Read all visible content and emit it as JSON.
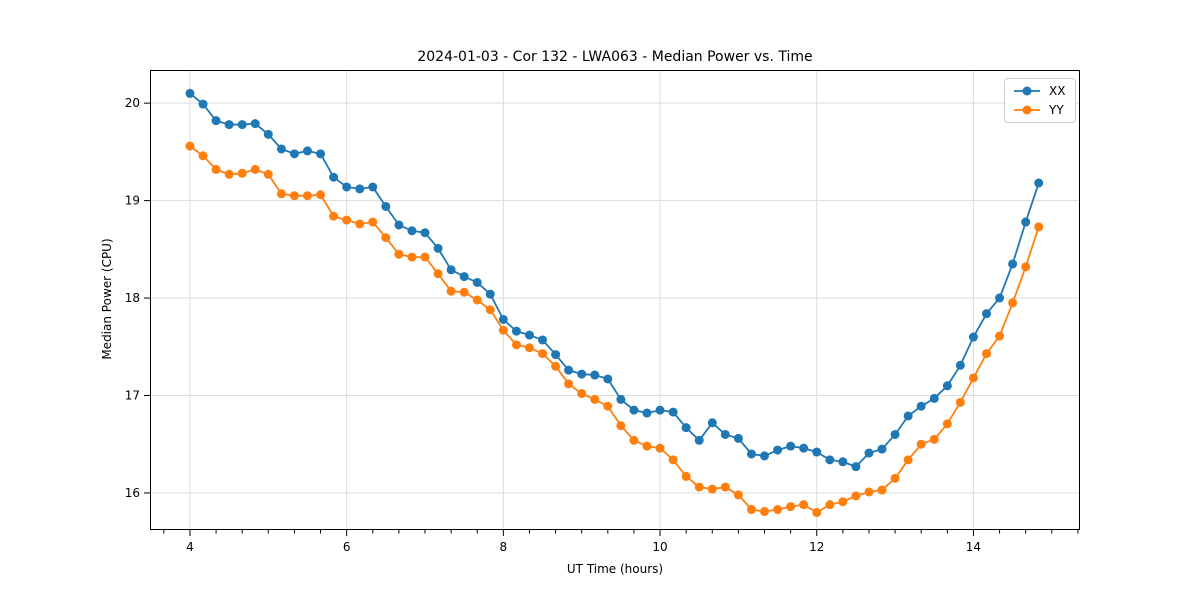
{
  "figure": {
    "title": "2024-01-03 - Cor 132 - LWA063 - Median Power vs. Time",
    "xlabel": "UT Time (hours)",
    "ylabel": "Median Power (CPU)"
  },
  "chart_data": {
    "type": "line",
    "title": "2024-01-03 - Cor 132 - LWA063 - Median Power vs. Time",
    "xlabel": "UT Time (hours)",
    "ylabel": "Median Power (CPU)",
    "xlim": [
      3.49,
      15.36
    ],
    "ylim": [
      15.62,
      20.34
    ],
    "x_ticks": [
      4,
      6,
      8,
      10,
      12,
      14
    ],
    "y_ticks": [
      16,
      17,
      18,
      19,
      20
    ],
    "x_minor_step": 0.33333,
    "grid": true,
    "grid_color": "#dcdcdc",
    "legend_position": "upper right",
    "marker": "circle",
    "x": [
      4.0,
      4.167,
      4.333,
      4.5,
      4.667,
      4.833,
      5.0,
      5.167,
      5.333,
      5.5,
      5.667,
      5.833,
      6.0,
      6.167,
      6.333,
      6.5,
      6.667,
      6.833,
      7.0,
      7.167,
      7.333,
      7.5,
      7.667,
      7.833,
      8.0,
      8.167,
      8.333,
      8.5,
      8.667,
      8.833,
      9.0,
      9.167,
      9.333,
      9.5,
      9.667,
      9.833,
      10.0,
      10.167,
      10.333,
      10.5,
      10.667,
      10.833,
      11.0,
      11.167,
      11.333,
      11.5,
      11.667,
      11.833,
      12.0,
      12.167,
      12.333,
      12.5,
      12.667,
      12.833,
      13.0,
      13.167,
      13.333,
      13.5,
      13.667,
      13.833,
      14.0,
      14.167,
      14.333,
      14.5,
      14.667,
      14.833
    ],
    "series": [
      {
        "name": "XX",
        "color": "#1f77b4",
        "values": [
          20.1,
          19.99,
          19.82,
          19.78,
          19.78,
          19.79,
          19.68,
          19.53,
          19.48,
          19.51,
          19.48,
          19.24,
          19.14,
          19.12,
          19.14,
          18.94,
          18.75,
          18.69,
          18.67,
          18.51,
          18.29,
          18.22,
          18.16,
          18.04,
          17.78,
          17.66,
          17.62,
          17.57,
          17.42,
          17.26,
          17.22,
          17.21,
          17.17,
          16.96,
          16.85,
          16.82,
          16.85,
          16.83,
          16.67,
          16.54,
          16.72,
          16.6,
          16.56,
          16.4,
          16.38,
          16.44,
          16.48,
          16.46,
          16.42,
          16.34,
          16.32,
          16.27,
          16.41,
          16.45,
          16.6,
          16.79,
          16.89,
          16.97,
          17.1,
          17.31,
          17.6,
          17.84,
          18.0,
          18.35,
          18.78,
          19.18
        ]
      },
      {
        "name": "YY",
        "color": "#ff7f0e",
        "values": [
          19.56,
          19.46,
          19.32,
          19.27,
          19.28,
          19.32,
          19.27,
          19.07,
          19.05,
          19.05,
          19.06,
          18.84,
          18.8,
          18.76,
          18.78,
          18.62,
          18.45,
          18.42,
          18.42,
          18.25,
          18.07,
          18.06,
          17.98,
          17.88,
          17.67,
          17.52,
          17.49,
          17.43,
          17.3,
          17.12,
          17.02,
          16.96,
          16.89,
          16.69,
          16.54,
          16.48,
          16.46,
          16.34,
          16.17,
          16.06,
          16.04,
          16.06,
          15.98,
          15.83,
          15.81,
          15.83,
          15.86,
          15.88,
          15.8,
          15.88,
          15.91,
          15.97,
          16.01,
          16.03,
          16.15,
          16.34,
          16.5,
          16.55,
          16.71,
          16.93,
          17.18,
          17.43,
          17.61,
          17.95,
          18.32,
          18.73
        ]
      }
    ]
  }
}
